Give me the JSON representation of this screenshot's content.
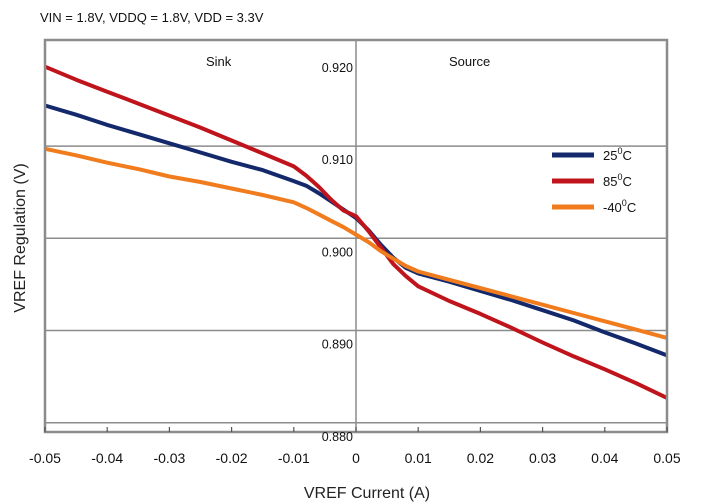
{
  "chart_data": {
    "type": "line",
    "title": "VIN = 1.8V, VDDQ = 1.8V,  VDD = 3.3V",
    "xlabel": "VREF Current (A)",
    "ylabel": "VREF Regulation (V)",
    "xlim": [
      -0.05,
      0.05
    ],
    "ylim": [
      0.879,
      0.9215
    ],
    "xticks": [
      "-0.05",
      "-0.04",
      "-0.03",
      "-0.02",
      "-0.01",
      "0",
      "0.01",
      "0.02",
      "0.03",
      "0.04",
      "0.05"
    ],
    "yticks": [
      {
        "value": 0.92,
        "label": "0.920"
      },
      {
        "value": 0.91,
        "label": "0.910"
      },
      {
        "value": 0.9,
        "label": "0.900"
      },
      {
        "value": 0.89,
        "label": "0.890"
      },
      {
        "value": 0.88,
        "label": "0.880"
      }
    ],
    "grid": true,
    "legend_position": "top-right",
    "regions": {
      "left": "Sink",
      "right": "Source"
    },
    "series": [
      {
        "name": "25°C",
        "legend_base": "25",
        "legend_unit": "C",
        "color": "#13296b",
        "x": [
          -0.05,
          -0.045,
          -0.04,
          -0.035,
          -0.03,
          -0.025,
          -0.02,
          -0.015,
          -0.01,
          -0.008,
          -0.006,
          -0.004,
          -0.002,
          0,
          0.002,
          0.004,
          0.006,
          0.008,
          0.01,
          0.015,
          0.02,
          0.025,
          0.03,
          0.035,
          0.04,
          0.045,
          0.05
        ],
        "y": [
          0.9144,
          0.9134,
          0.9123,
          0.9113,
          0.9103,
          0.9093,
          0.9083,
          0.9074,
          0.9062,
          0.9057,
          0.9049,
          0.904,
          0.9031,
          0.9022,
          0.9009,
          0.8993,
          0.8979,
          0.8968,
          0.8962,
          0.8953,
          0.8943,
          0.8933,
          0.8922,
          0.8911,
          0.8898,
          0.8886,
          0.8873
        ]
      },
      {
        "name": "85°C",
        "legend_base": "85",
        "legend_unit": "C",
        "color": "#c0141c",
        "x": [
          -0.05,
          -0.045,
          -0.04,
          -0.035,
          -0.03,
          -0.025,
          -0.02,
          -0.015,
          -0.01,
          -0.008,
          -0.006,
          -0.004,
          -0.002,
          0,
          0.002,
          0.004,
          0.006,
          0.008,
          0.01,
          0.015,
          0.02,
          0.025,
          0.03,
          0.035,
          0.04,
          0.045,
          0.05
        ],
        "y": [
          0.9186,
          0.9172,
          0.9159,
          0.9146,
          0.9133,
          0.912,
          0.9106,
          0.9092,
          0.9078,
          0.9068,
          0.9056,
          0.9042,
          0.903,
          0.9024,
          0.9008,
          0.899,
          0.8972,
          0.8959,
          0.8948,
          0.8932,
          0.8918,
          0.8903,
          0.8887,
          0.8872,
          0.8858,
          0.8843,
          0.8827
        ]
      },
      {
        "name": "-40°C",
        "legend_base": "-40",
        "legend_unit": "C",
        "color": "#f07c1e",
        "x": [
          -0.05,
          -0.045,
          -0.04,
          -0.035,
          -0.03,
          -0.025,
          -0.02,
          -0.015,
          -0.01,
          -0.008,
          -0.006,
          -0.004,
          -0.002,
          0,
          0.002,
          0.004,
          0.006,
          0.008,
          0.01,
          0.015,
          0.02,
          0.025,
          0.03,
          0.035,
          0.04,
          0.045,
          0.05
        ],
        "y": [
          0.9097,
          0.909,
          0.9082,
          0.9075,
          0.9067,
          0.9061,
          0.9054,
          0.9047,
          0.9039,
          0.9033,
          0.9026,
          0.9019,
          0.9012,
          0.9004,
          0.8996,
          0.8986,
          0.8978,
          0.897,
          0.8964,
          0.8955,
          0.8946,
          0.8937,
          0.8928,
          0.8919,
          0.891,
          0.8901,
          0.8892
        ]
      }
    ]
  }
}
